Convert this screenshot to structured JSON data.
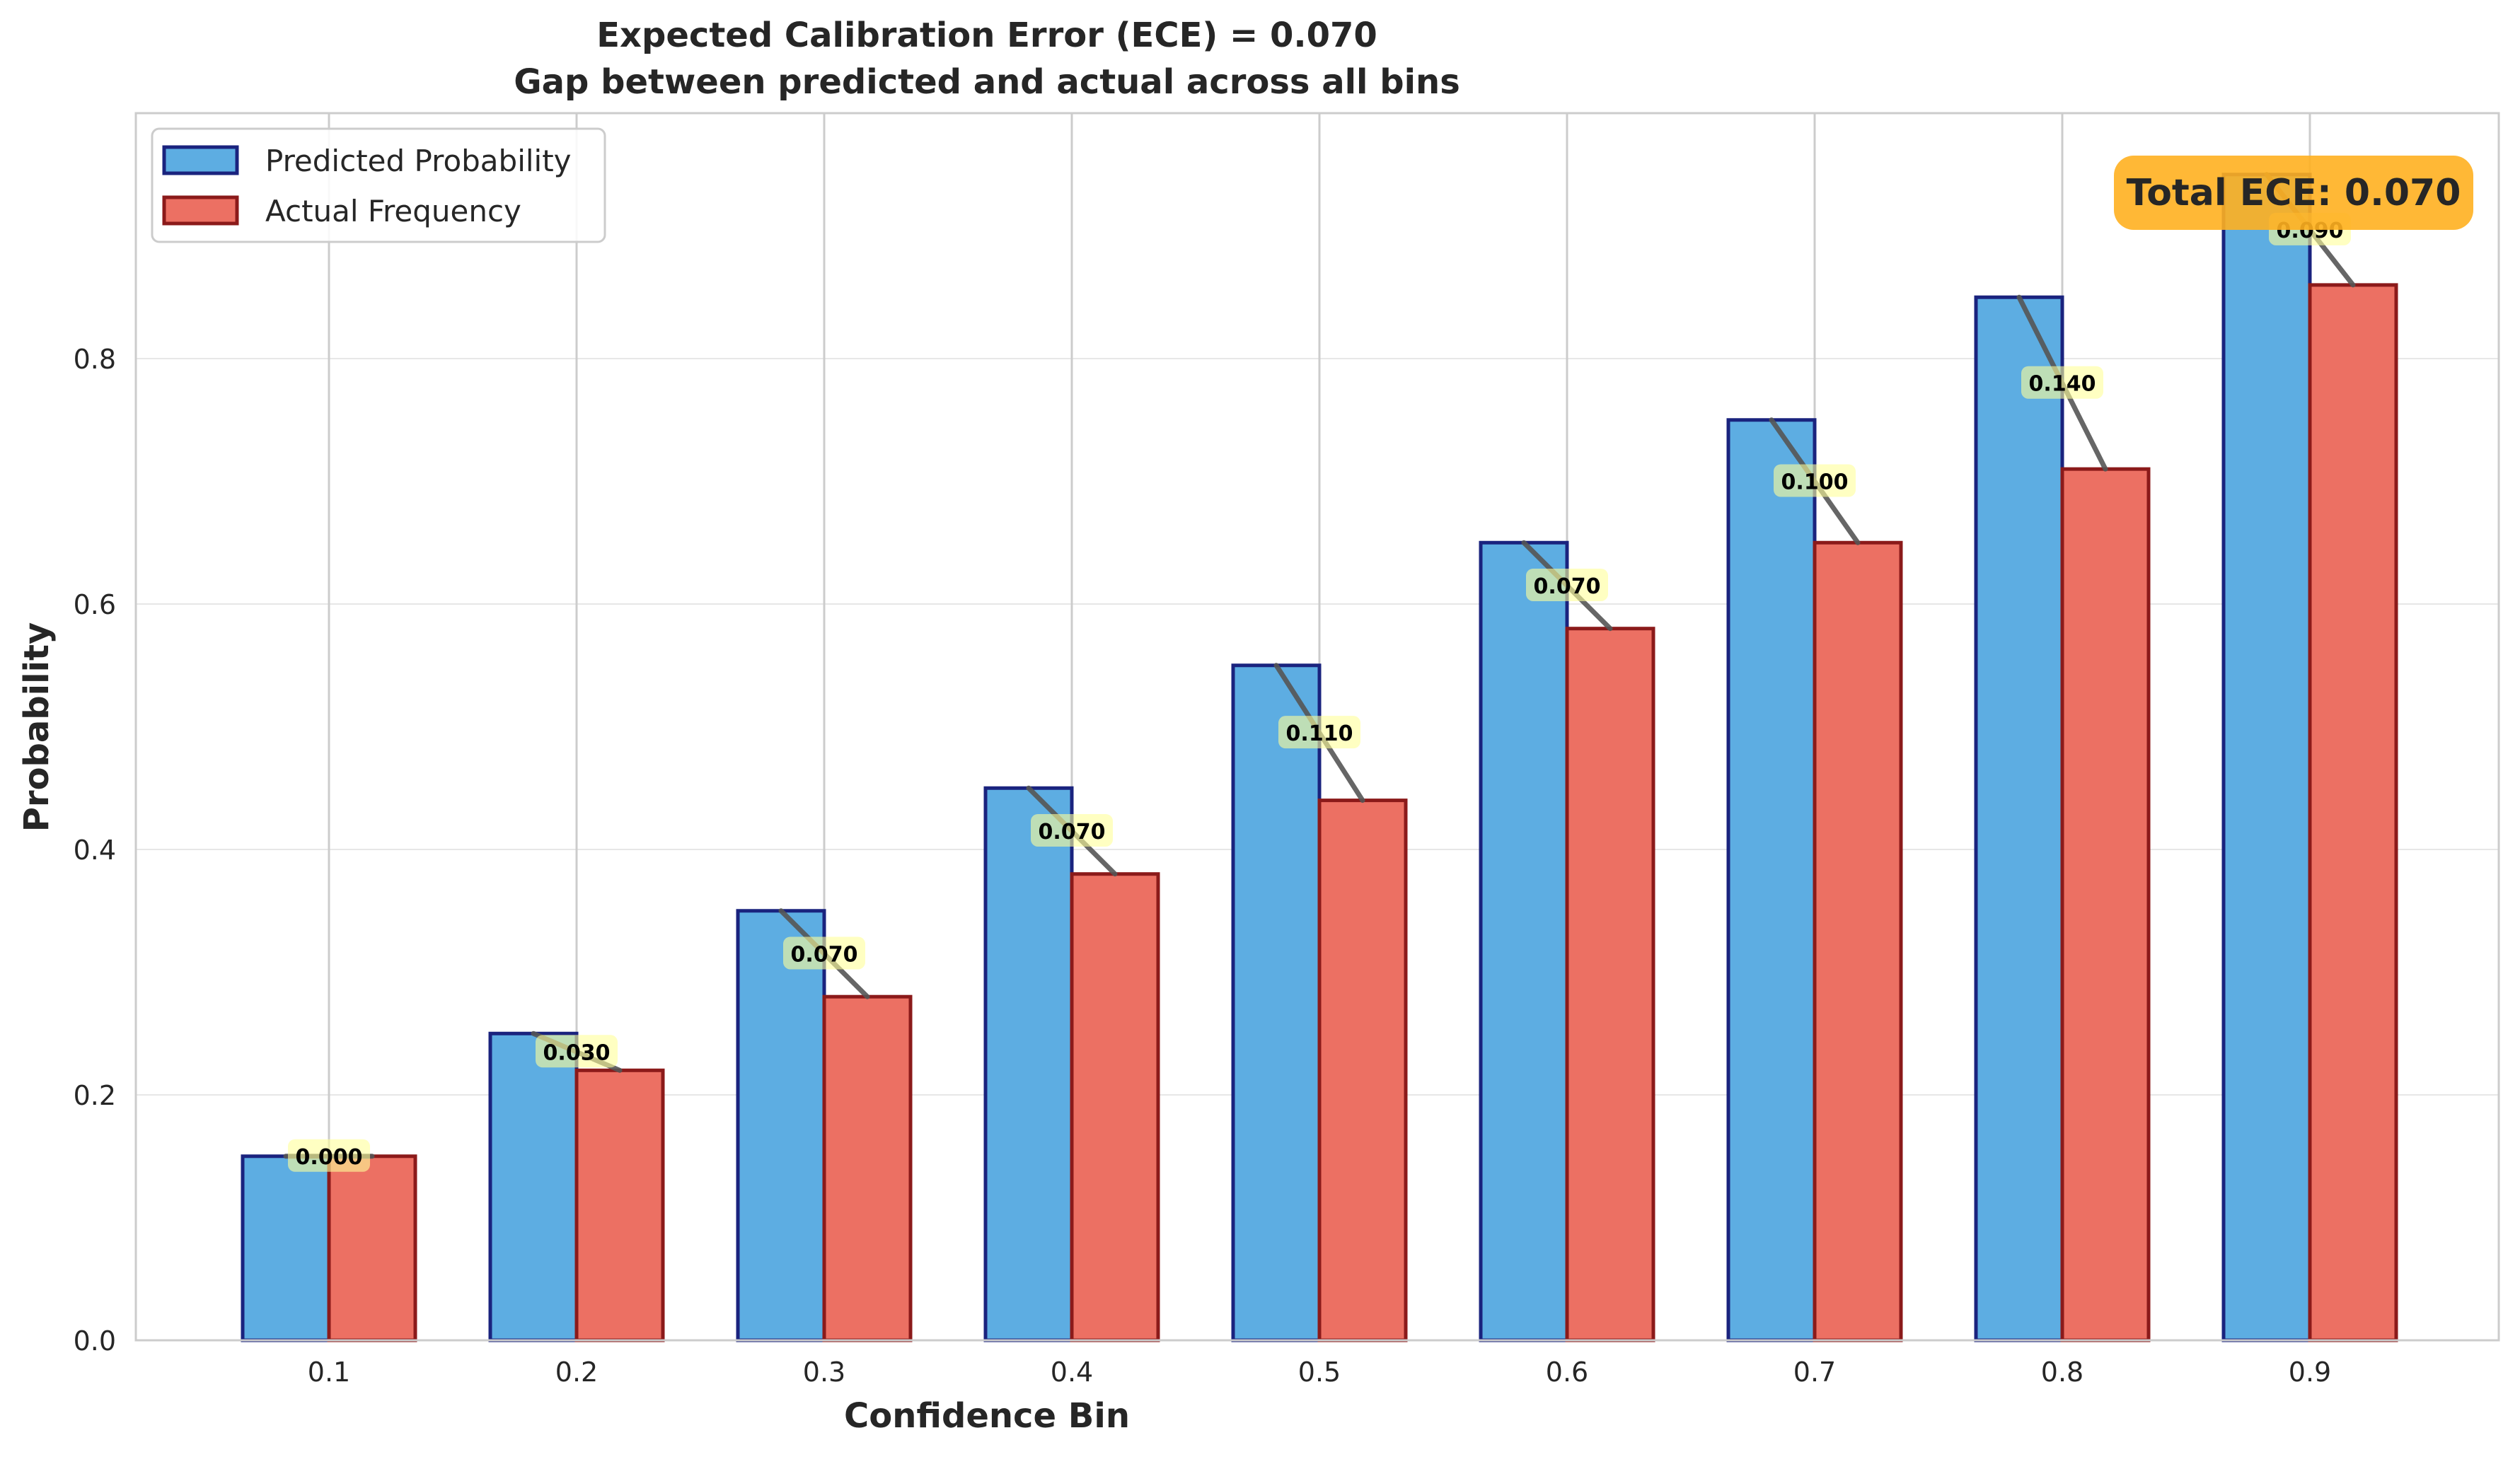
{
  "chart_data": {
    "type": "bar",
    "title": "Expected Calibration Error (ECE) = 0.070",
    "subtitle": "Gap between predicted and actual across all bins",
    "xlabel": "Confidence Bin",
    "ylabel": "Probability",
    "categories": [
      "0.1",
      "0.2",
      "0.3",
      "0.4",
      "0.5",
      "0.6",
      "0.7",
      "0.8",
      "0.9"
    ],
    "ylim": [
      0,
      1.0
    ],
    "yticks": [
      "0.0",
      "0.2",
      "0.4",
      "0.6",
      "0.8"
    ],
    "grid": true,
    "legend_position": "top-left",
    "series": [
      {
        "name": "Predicted Probability",
        "values": [
          0.15,
          0.25,
          0.35,
          0.45,
          0.55,
          0.65,
          0.75,
          0.85,
          0.95
        ]
      },
      {
        "name": "Actual Frequency",
        "values": [
          0.15,
          0.22,
          0.28,
          0.38,
          0.44,
          0.58,
          0.65,
          0.71,
          0.86
        ]
      }
    ],
    "gap_labels": [
      "0.000",
      "0.030",
      "0.070",
      "0.070",
      "0.110",
      "0.070",
      "0.100",
      "0.140",
      "0.090"
    ],
    "annotation": "Total ECE: 0.070",
    "colors": {
      "predicted_fill": "#5dade2",
      "predicted_edge": "#1a237e",
      "actual_fill": "#ec7063",
      "actual_edge": "#8b1a1a",
      "gap_line": "#555555",
      "gap_label_bg": "#ffff99",
      "annotation_bg": "#ffb020",
      "grid": "#dddddd",
      "axis": "#cccccc"
    }
  }
}
